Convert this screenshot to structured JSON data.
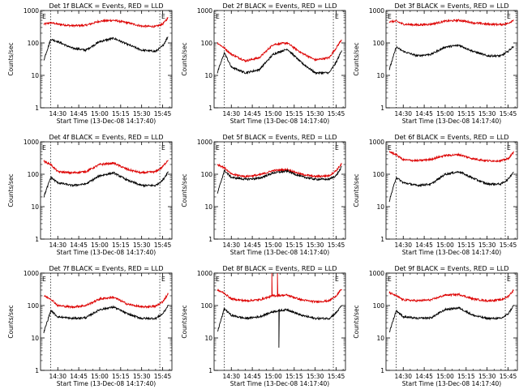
{
  "colors": {
    "events": "#000000",
    "lld": "#dd0000",
    "axes": "#000000",
    "background": "#ffffff"
  },
  "chart_data": [
    {
      "type": "line",
      "title": "Det 1f BLACK = Events, RED = LLD",
      "xlabel": "Start Time (13-Dec-08 14:17:40)",
      "ylabel": "Counts/sec",
      "yscale": "log",
      "ylim": [
        1,
        1000
      ],
      "x_tick_labels": [
        "14:30",
        "14:45",
        "15:00",
        "15:15",
        "15:30",
        "15:45"
      ],
      "y_tick_labels": [
        "1",
        "10",
        "100",
        "1000"
      ],
      "x": [
        "14:20",
        "14:25",
        "14:30",
        "14:40",
        "14:50",
        "15:00",
        "15:10",
        "15:20",
        "15:30",
        "15:40",
        "15:45",
        "15:49"
      ],
      "series": [
        {
          "values": [
            30,
            130,
            110,
            70,
            60,
            110,
            140,
            90,
            60,
            55,
            80,
            160
          ]
        },
        {
          "values": [
            380,
            420,
            380,
            340,
            350,
            470,
            500,
            420,
            330,
            320,
            380,
            600
          ]
        }
      ],
      "edge_marks": [
        "E",
        "E"
      ]
    },
    {
      "type": "line",
      "title": "Det 2f BLACK = Events, RED = LLD",
      "xlabel": "Start Time (13-Dec-08 14:17:40)",
      "ylabel": "Counts/sec",
      "yscale": "log",
      "ylim": [
        1,
        1000
      ],
      "x_tick_labels": [
        "14:30",
        "14:45",
        "15:00",
        "15:15",
        "15:30",
        "15:45"
      ],
      "y_tick_labels": [
        "1",
        "10",
        "100",
        "1000"
      ],
      "x": [
        "14:20",
        "14:25",
        "14:30",
        "14:40",
        "14:50",
        "15:00",
        "15:10",
        "15:20",
        "15:30",
        "15:40",
        "15:45",
        "15:49"
      ],
      "series": [
        {
          "values": [
            12,
            50,
            18,
            12,
            15,
            45,
            65,
            25,
            12,
            12,
            25,
            60
          ]
        },
        {
          "values": [
            100,
            70,
            45,
            28,
            35,
            90,
            100,
            50,
            30,
            35,
            70,
            130
          ]
        }
      ],
      "edge_marks": [
        "E",
        "E"
      ]
    },
    {
      "type": "line",
      "title": "Det 3f BLACK = Events, RED = LLD",
      "xlabel": "Start Time (13-Dec-08 14:17:40)",
      "ylabel": "Counts/sec",
      "yscale": "log",
      "ylim": [
        1,
        1000
      ],
      "x_tick_labels": [
        "14:30",
        "14:45",
        "15:00",
        "15:15",
        "15:30",
        "15:45"
      ],
      "y_tick_labels": [
        "1",
        "10",
        "100",
        "1000"
      ],
      "x": [
        "14:20",
        "14:25",
        "14:30",
        "14:40",
        "14:50",
        "15:00",
        "15:10",
        "15:20",
        "15:30",
        "15:40",
        "15:45",
        "15:49"
      ],
      "series": [
        {
          "values": [
            15,
            75,
            55,
            40,
            45,
            75,
            85,
            55,
            40,
            40,
            55,
            80
          ]
        },
        {
          "values": [
            450,
            470,
            380,
            360,
            380,
            470,
            500,
            420,
            380,
            370,
            400,
            520
          ]
        }
      ],
      "edge_marks": [
        "E",
        "E"
      ]
    },
    {
      "type": "line",
      "title": "Det 4f BLACK = Events, RED = LLD",
      "xlabel": "Start Time (13-Dec-08 14:17:40)",
      "ylabel": "Counts/sec",
      "yscale": "log",
      "ylim": [
        1,
        1000
      ],
      "x_tick_labels": [
        "14:30",
        "14:45",
        "15:00",
        "15:15",
        "15:30",
        "15:45"
      ],
      "y_tick_labels": [
        "1",
        "10",
        "100",
        "1000"
      ],
      "x": [
        "14:20",
        "14:25",
        "14:30",
        "14:40",
        "14:50",
        "15:00",
        "15:10",
        "15:20",
        "15:30",
        "15:40",
        "15:45",
        "15:49"
      ],
      "series": [
        {
          "values": [
            20,
            80,
            55,
            45,
            50,
            90,
            110,
            65,
            45,
            45,
            65,
            120
          ]
        },
        {
          "values": [
            250,
            200,
            120,
            110,
            120,
            200,
            220,
            140,
            110,
            120,
            170,
            280
          ]
        }
      ],
      "edge_marks": [
        "E",
        "E"
      ]
    },
    {
      "type": "line",
      "title": "Det 5f BLACK = Events, RED = LLD",
      "xlabel": "Start Time (13-Dec-08 14:17:40)",
      "ylabel": "Counts/sec",
      "yscale": "log",
      "ylim": [
        1,
        1000
      ],
      "x_tick_labels": [
        "14:30",
        "14:45",
        "15:00",
        "15:15",
        "15:30",
        "15:45"
      ],
      "y_tick_labels": [
        "1",
        "10",
        "100",
        "1000"
      ],
      "x": [
        "14:20",
        "14:25",
        "14:30",
        "14:40",
        "14:50",
        "15:00",
        "15:10",
        "15:20",
        "15:30",
        "15:40",
        "15:45",
        "15:49"
      ],
      "series": [
        {
          "values": [
            25,
            130,
            80,
            70,
            75,
            110,
            125,
            85,
            70,
            70,
            90,
            170
          ]
        },
        {
          "values": [
            200,
            160,
            100,
            85,
            95,
            130,
            140,
            100,
            85,
            90,
            130,
            210
          ]
        }
      ],
      "edge_marks": [
        "E",
        "E"
      ]
    },
    {
      "type": "line",
      "title": "Det 6f BLACK = Events, RED = LLD",
      "xlabel": "Start Time (13-Dec-08 14:17:40)",
      "ylabel": "Counts/sec",
      "yscale": "log",
      "ylim": [
        1,
        1000
      ],
      "x_tick_labels": [
        "14:30",
        "14:45",
        "15:00",
        "15:15",
        "15:30",
        "15:45"
      ],
      "y_tick_labels": [
        "1",
        "10",
        "100",
        "1000"
      ],
      "x": [
        "14:20",
        "14:25",
        "14:30",
        "14:40",
        "14:50",
        "15:00",
        "15:10",
        "15:20",
        "15:30",
        "15:40",
        "15:45",
        "15:49"
      ],
      "series": [
        {
          "values": [
            15,
            80,
            55,
            45,
            50,
            100,
            120,
            75,
            50,
            50,
            70,
            120
          ]
        },
        {
          "values": [
            500,
            400,
            280,
            260,
            290,
            380,
            400,
            300,
            260,
            260,
            300,
            480
          ]
        }
      ],
      "edge_marks": [
        "E",
        "E"
      ]
    },
    {
      "type": "line",
      "title": "Det 7f BLACK = Events, RED = LLD",
      "xlabel": "Start Time (13-Dec-08 14:17:40)",
      "ylabel": "Counts/sec",
      "yscale": "log",
      "ylim": [
        1,
        1000
      ],
      "x_tick_labels": [
        "14:30",
        "14:45",
        "15:00",
        "15:15",
        "15:30",
        "15:45"
      ],
      "y_tick_labels": [
        "1",
        "10",
        "100",
        "1000"
      ],
      "x": [
        "14:20",
        "14:25",
        "14:30",
        "14:40",
        "14:50",
        "15:00",
        "15:10",
        "15:20",
        "15:30",
        "15:40",
        "15:45",
        "15:49"
      ],
      "series": [
        {
          "values": [
            15,
            70,
            45,
            40,
            42,
            75,
            90,
            55,
            40,
            40,
            55,
            100
          ]
        },
        {
          "values": [
            200,
            160,
            100,
            90,
            100,
            160,
            180,
            110,
            90,
            95,
            130,
            230
          ]
        }
      ],
      "edge_marks": [
        "E",
        "E"
      ]
    },
    {
      "type": "line",
      "title": "Det 8f BLACK = Events, RED = LLD",
      "xlabel": "Start Time (13-Dec-08 14:17:40)",
      "ylabel": "Counts/sec",
      "yscale": "log",
      "ylim": [
        1,
        1000
      ],
      "x_tick_labels": [
        "14:30",
        "14:45",
        "15:00",
        "15:15",
        "15:30",
        "15:45"
      ],
      "y_tick_labels": [
        "1",
        "10",
        "100",
        "1000"
      ],
      "x": [
        "14:20",
        "14:25",
        "14:30",
        "14:40",
        "14:50",
        "15:00",
        "15:10",
        "15:20",
        "15:30",
        "15:40",
        "15:45",
        "15:49"
      ],
      "series": [
        {
          "values": [
            15,
            80,
            50,
            40,
            45,
            65,
            75,
            50,
            40,
            40,
            60,
            100
          ]
        },
        {
          "values": [
            300,
            240,
            160,
            140,
            150,
            200,
            210,
            150,
            130,
            140,
            200,
            320
          ]
        }
      ],
      "spikes": [
        {
          "series": 1,
          "x": "14:59",
          "value": 1000
        },
        {
          "series": 1,
          "x": "15:03",
          "value": 1000
        },
        {
          "series": 0,
          "x": "15:04",
          "value": 5
        }
      ],
      "edge_marks": [
        "E",
        "E"
      ]
    },
    {
      "type": "line",
      "title": "Det 9f BLACK = Events, RED = LLD",
      "xlabel": "Start Time (13-Dec-08 14:17:40)",
      "ylabel": "Counts/sec",
      "yscale": "log",
      "ylim": [
        1,
        1000
      ],
      "x_tick_labels": [
        "14:30",
        "14:45",
        "15:00",
        "15:15",
        "15:30",
        "15:45"
      ],
      "y_tick_labels": [
        "1",
        "10",
        "100",
        "1000"
      ],
      "x": [
        "14:20",
        "14:25",
        "14:30",
        "14:40",
        "14:50",
        "15:00",
        "15:10",
        "15:20",
        "15:30",
        "15:40",
        "15:45",
        "15:49"
      ],
      "series": [
        {
          "values": [
            15,
            70,
            45,
            40,
            42,
            75,
            85,
            50,
            40,
            40,
            55,
            100
          ]
        },
        {
          "values": [
            250,
            200,
            150,
            140,
            150,
            210,
            220,
            160,
            140,
            150,
            190,
            300
          ]
        }
      ],
      "edge_marks": [
        "E",
        "E"
      ]
    }
  ]
}
